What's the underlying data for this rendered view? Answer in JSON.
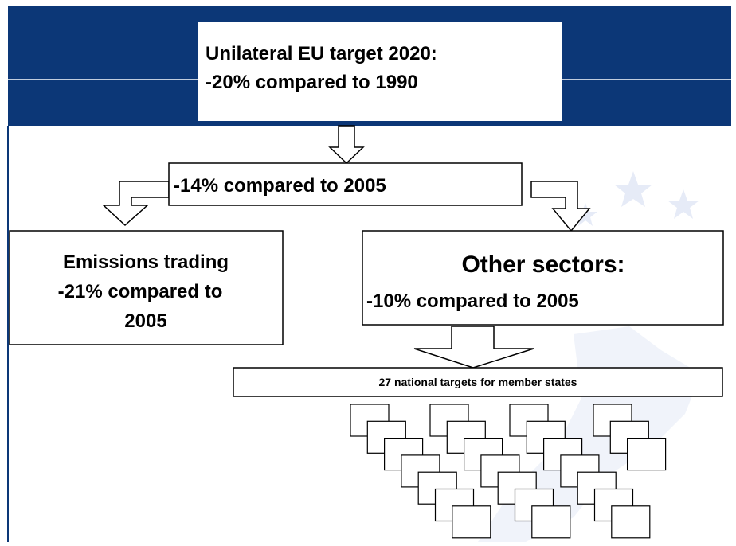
{
  "header": {
    "lines": [
      "Unilateral EU target 2020:",
      "-20% compared to 1990"
    ]
  },
  "middle": {
    "text": "-14% compared to 2005"
  },
  "left_box": {
    "lines": [
      "Emissions trading",
      "-21% compared to",
      "2005"
    ]
  },
  "right_box": {
    "title": "Other sectors:",
    "text": "-10% compared to 2005"
  },
  "national": {
    "text": "27 national targets for member states"
  }
}
